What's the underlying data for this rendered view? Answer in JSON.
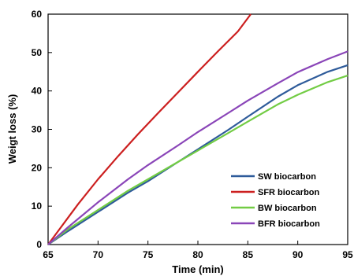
{
  "chart_data": {
    "type": "line",
    "xlabel": "Time (min)",
    "ylabel": "Weigt loss (%)",
    "xlim": [
      65,
      95
    ],
    "ylim": [
      0,
      60
    ],
    "x_ticks": [
      65,
      70,
      75,
      80,
      85,
      90,
      95
    ],
    "y_ticks": [
      0,
      10,
      20,
      30,
      40,
      50,
      60
    ],
    "grid": false,
    "legend_position": "bottom-right",
    "series": [
      {
        "name": "SW biocarbon",
        "color": "#2e5b9a",
        "x": [
          65,
          67,
          70,
          73,
          75,
          78,
          80,
          83,
          85,
          88,
          90,
          93,
          95
        ],
        "y": [
          0,
          3.5,
          8.5,
          13.5,
          16.5,
          21.5,
          24.8,
          29.8,
          33.3,
          38.5,
          41.5,
          45,
          46.7
        ]
      },
      {
        "name": "SFR biocarbon",
        "color": "#cc1f1f",
        "x": [
          65,
          66,
          67,
          68,
          70,
          72,
          74,
          76,
          78,
          80,
          82,
          84,
          85.3
        ],
        "y": [
          0,
          3.5,
          7,
          10.5,
          17,
          23,
          28.7,
          34.2,
          39.6,
          45,
          50.3,
          55.5,
          60
        ]
      },
      {
        "name": "BW biocarbon",
        "color": "#72cc44",
        "x": [
          65,
          67,
          70,
          73,
          75,
          78,
          80,
          83,
          85,
          88,
          90,
          93,
          95
        ],
        "y": [
          0,
          4,
          9,
          14,
          17,
          21.5,
          24.5,
          29,
          32,
          36.5,
          39,
          42.3,
          44
        ]
      },
      {
        "name": "BFR biocarbon",
        "color": "#8a45b8",
        "x": [
          65,
          67,
          70,
          73,
          75,
          78,
          80,
          83,
          85,
          88,
          90,
          93,
          95
        ],
        "y": [
          0,
          4.5,
          11,
          17,
          20.7,
          25.8,
          29.3,
          34.2,
          37.5,
          42,
          44.9,
          48.3,
          50.3
        ]
      }
    ]
  }
}
